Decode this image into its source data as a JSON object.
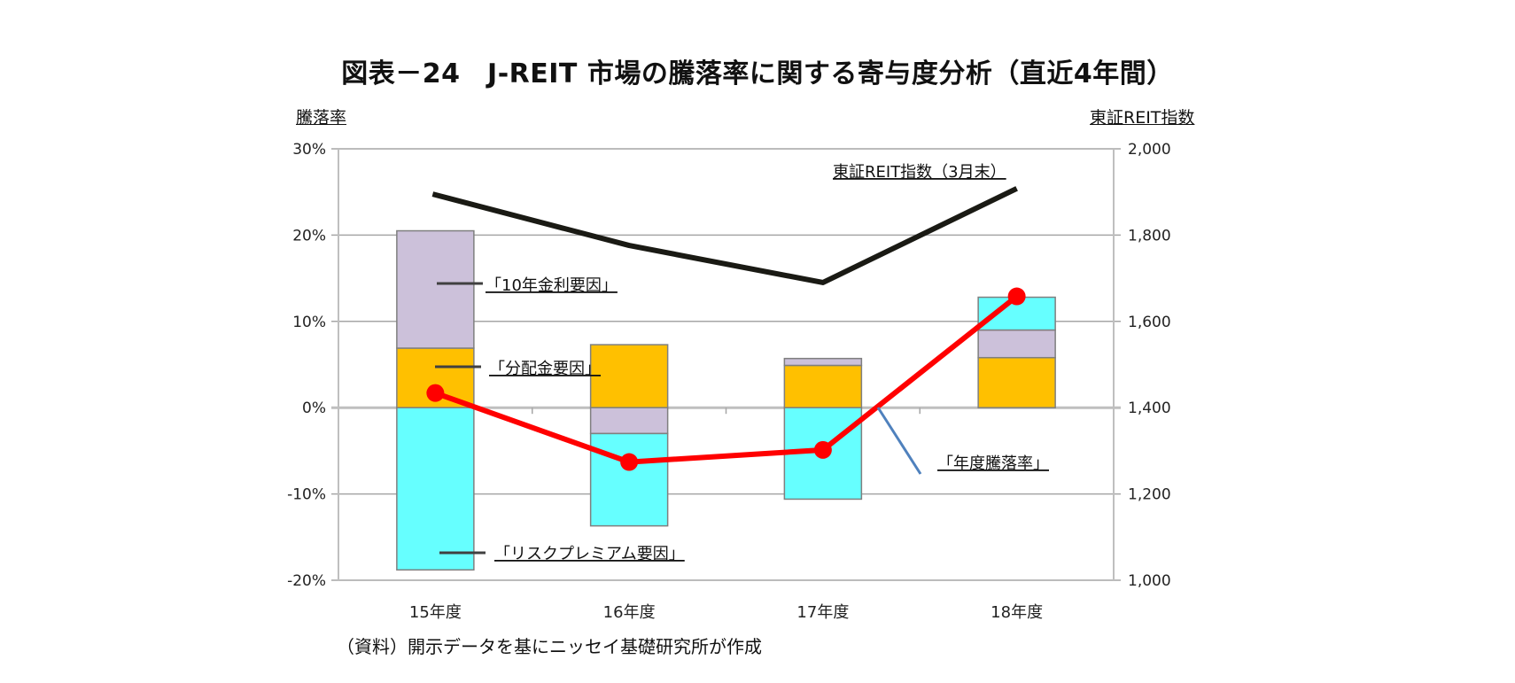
{
  "title": "図表－24　J-REIT 市場の騰落率に関する寄与度分析（直近4年間）",
  "left_axis_title": "騰落率",
  "right_axis_title": "東証REIT指数",
  "source": "（資料）開示データを基にニッセイ基礎研究所が作成",
  "annotations": {
    "rate_factor": "「10年金利要因」",
    "dividend_factor": "「分配金要因」",
    "risk_premium_factor": "「リスクプレミアム要因」",
    "annual_change": "「年度騰落率」",
    "reit_index": "東証REIT指数（3月末）"
  },
  "colors": {
    "dividend": "#FFC000",
    "rate": "#CCC1DA",
    "risk_premium": "#66FFFF",
    "annual_change": "#FF0000",
    "reit_index": "#1A1A14",
    "leader_blue": "#4F81BD",
    "grid": "#BFBFBF"
  },
  "chart_data": {
    "type": "bar",
    "subtype": "stacked bar with line overlays (dual axis)",
    "title": "図表－24　J-REIT 市場の騰落率に関する寄与度分析（直近4年間）",
    "categories": [
      "15年度",
      "16年度",
      "17年度",
      "18年度"
    ],
    "series": [
      {
        "name": "分配金要因",
        "type": "bar",
        "axis": "left",
        "values": [
          6.9,
          7.3,
          4.9,
          5.8
        ]
      },
      {
        "name": "10年金利要因",
        "type": "bar",
        "axis": "left",
        "values": [
          13.6,
          -3.0,
          0.8,
          3.2
        ]
      },
      {
        "name": "リスクプレミアム要因",
        "type": "bar",
        "axis": "left",
        "values": [
          -18.8,
          -10.7,
          -10.6,
          3.8
        ]
      },
      {
        "name": "年度騰落率",
        "type": "line",
        "axis": "left",
        "values": [
          1.7,
          -6.3,
          -4.9,
          12.9
        ]
      },
      {
        "name": "東証REIT指数（3月末）",
        "type": "line",
        "axis": "right",
        "values": [
          1895,
          1776,
          1690,
          1908
        ]
      }
    ],
    "ylabel": "騰落率",
    "ylabel_right": "東証REIT指数",
    "ylim": [
      -20,
      30
    ],
    "ylim_right": [
      1000,
      2000
    ],
    "yticks": [
      "30%",
      "20%",
      "10%",
      "0%",
      "-10%",
      "-20%"
    ],
    "yticks_right": [
      "2,000",
      "1,800",
      "1,600",
      "1,400",
      "1,200",
      "1,000"
    ],
    "grid": true,
    "legend": "inline annotations"
  }
}
